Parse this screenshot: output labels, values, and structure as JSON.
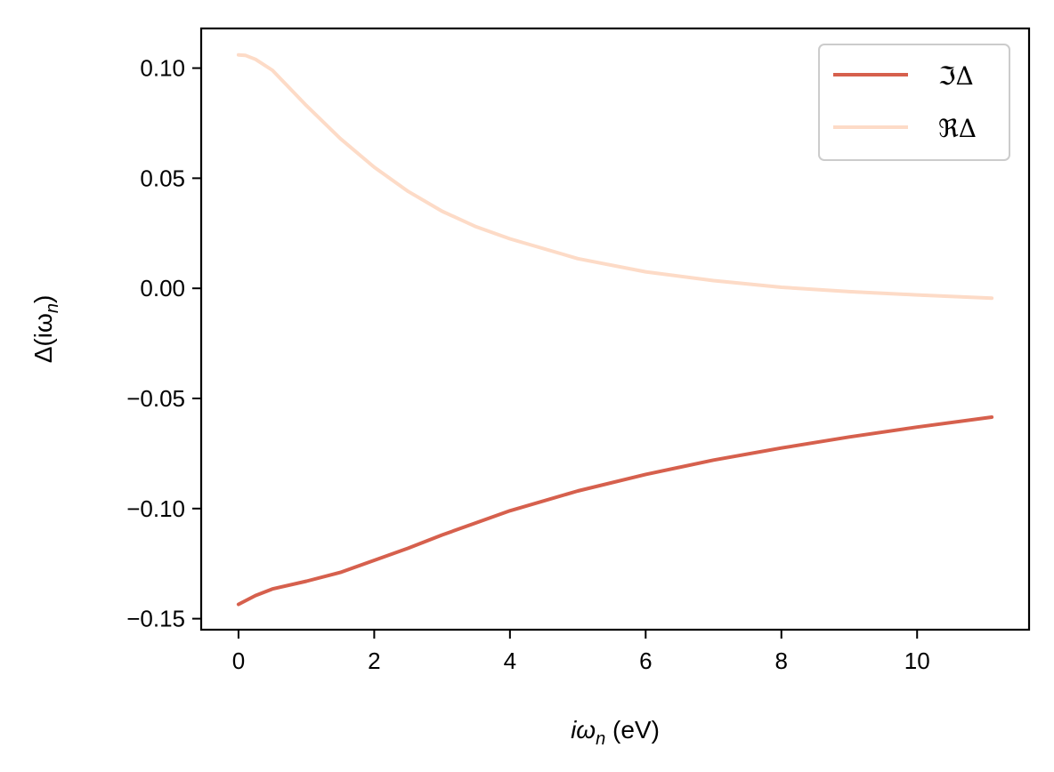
{
  "chart_data": {
    "type": "line",
    "xlabel_main": "iω",
    "xlabel_sub": "n",
    "xlabel_unit": " (eV)",
    "ylabel_main": "Δ(iω",
    "ylabel_sub": "n",
    "ylabel_close": ")",
    "xlim": [
      -0.55,
      11.65
    ],
    "ylim": [
      -0.155,
      0.118
    ],
    "xticks": [
      0,
      2,
      4,
      6,
      8,
      10
    ],
    "xtick_labels": [
      "0",
      "2",
      "4",
      "6",
      "8",
      "10"
    ],
    "yticks": [
      0.1,
      0.05,
      0.0,
      -0.05,
      -0.1,
      -0.15
    ],
    "ytick_labels": [
      "0.10",
      "0.05",
      "0.00",
      "−0.05",
      "−0.10",
      "−0.15"
    ],
    "legend_position": "top-right",
    "grid": false,
    "series": [
      {
        "name": "ℑΔ",
        "color": "#d6604d",
        "x": [
          0.0,
          0.25,
          0.5,
          1.0,
          1.5,
          2.0,
          2.5,
          3.0,
          3.5,
          4.0,
          5.0,
          6.0,
          7.0,
          8.0,
          9.0,
          10.0,
          11.1
        ],
        "y": [
          -0.1435,
          -0.1395,
          -0.1365,
          -0.133,
          -0.129,
          -0.1235,
          -0.118,
          -0.112,
          -0.1065,
          -0.101,
          -0.092,
          -0.0845,
          -0.078,
          -0.0725,
          -0.0675,
          -0.063,
          -0.0585
        ]
      },
      {
        "name": "ℜΔ",
        "color": "#fddbc7",
        "x": [
          0.0,
          0.1,
          0.25,
          0.5,
          1.0,
          1.5,
          2.0,
          2.5,
          3.0,
          3.5,
          4.0,
          5.0,
          6.0,
          7.0,
          8.0,
          9.0,
          10.0,
          11.1
        ],
        "y": [
          0.106,
          0.1058,
          0.104,
          0.099,
          0.083,
          0.068,
          0.055,
          0.044,
          0.035,
          0.028,
          0.0225,
          0.0135,
          0.0075,
          0.0035,
          0.0005,
          -0.0015,
          -0.003,
          -0.0045
        ]
      }
    ]
  }
}
